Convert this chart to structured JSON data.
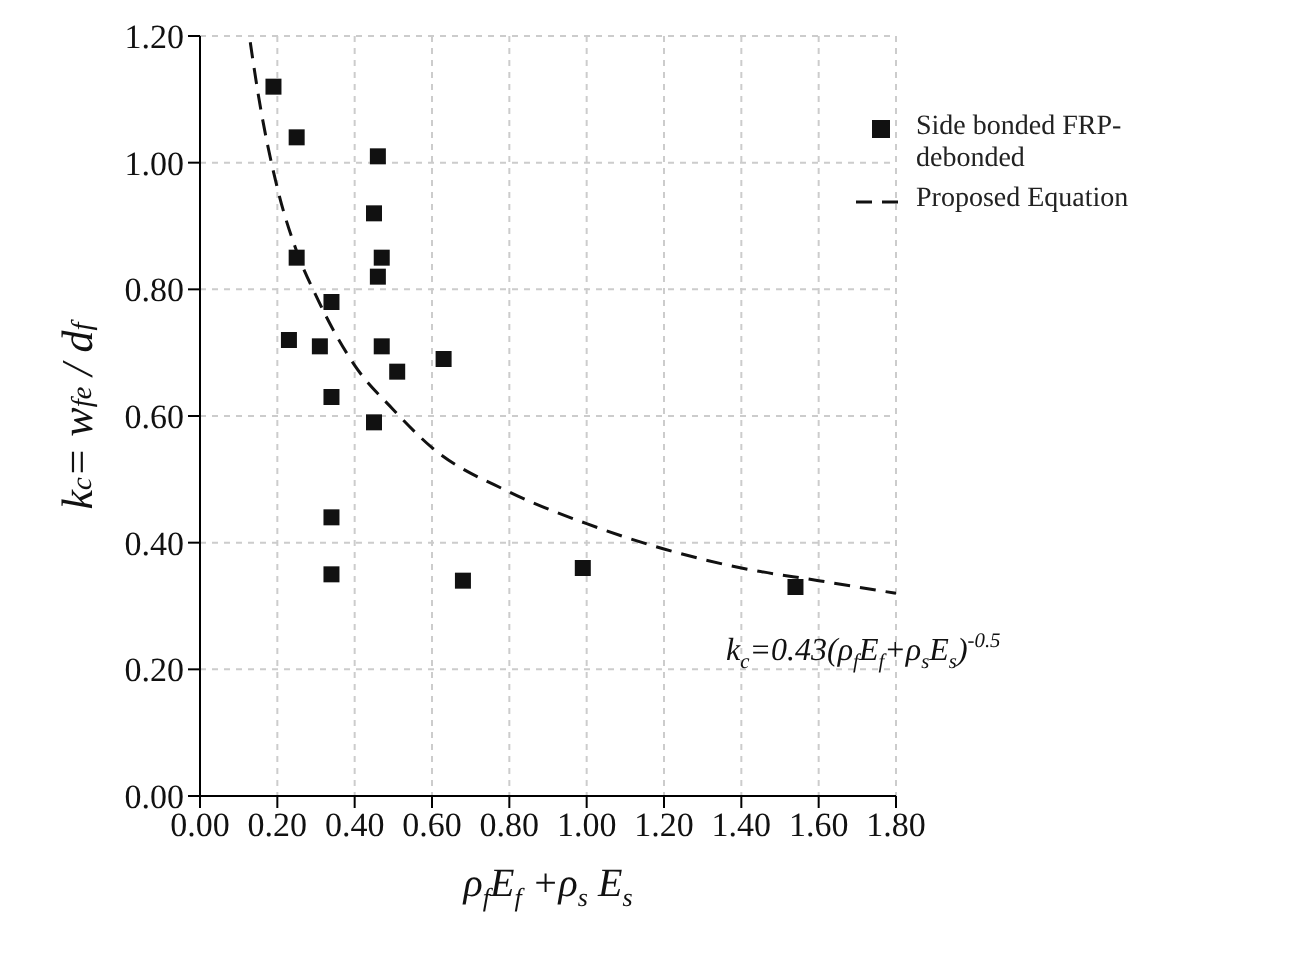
{
  "chart_data": {
    "type": "scatter",
    "xlabel": "ρ$_{f}$E$_{f}$ +ρ$_{s}$ E$_{s}$",
    "ylabel": "k$_{c}$= w$_{fe}$ / d$_{f}$",
    "xlim": [
      0,
      1.8
    ],
    "xticks": [
      {
        "value": 0,
        "label": "0.00"
      },
      {
        "value": 0.2,
        "label": "0.20"
      },
      {
        "value": 0.4,
        "label": "0.40"
      },
      {
        "value": 0.6,
        "label": "0.60"
      },
      {
        "value": 0.8,
        "label": "0.80"
      },
      {
        "value": 1,
        "label": "1.00"
      },
      {
        "value": 1.2,
        "label": "1.20"
      },
      {
        "value": 1.4,
        "label": "1.40"
      },
      {
        "value": 1.6,
        "label": "1.60"
      },
      {
        "value": 1.8,
        "label": "1.80"
      }
    ],
    "ylim": [
      0,
      1.2
    ],
    "yticks": [
      {
        "value": 0,
        "label": "0.00"
      },
      {
        "value": 0.2,
        "label": "0.20"
      },
      {
        "value": 0.4,
        "label": "0.40"
      },
      {
        "value": 0.6,
        "label": "0.60"
      },
      {
        "value": 0.8,
        "label": "0.80"
      },
      {
        "value": 1,
        "label": "1.00"
      },
      {
        "value": 1.2,
        "label": "1.20"
      }
    ],
    "grid": true,
    "legend": "top right",
    "marker": "square",
    "annotations": [
      "k$_{c}$=0.43(ρ$_{f}$E$_{f}$+ρ$_{s}$E$_{s}$)$^{-0.5}$"
    ],
    "series": [
      {
        "name": "Side bonded FRP-debonded",
        "color": "#111111",
        "x": [
          0.19,
          0.25,
          0.46,
          0.45,
          0.47,
          0.46,
          0.25,
          0.34,
          0.23,
          0.31,
          0.47,
          0.51,
          0.63,
          0.34,
          0.45,
          0.34,
          0.34,
          0.68,
          0.99,
          1.54
        ],
        "values": [
          1.12,
          1.04,
          1.01,
          0.92,
          0.85,
          0.82,
          0.85,
          0.78,
          0.72,
          0.71,
          0.71,
          0.67,
          0.69,
          0.63,
          0.59,
          0.44,
          0.35,
          0.34,
          0.36,
          0.33
        ]
      },
      {
        "name": "Proposed Equation",
        "type": "line",
        "color": "#111111",
        "line_style": "dashed",
        "marker": "none",
        "x": [
          0.13,
          0.15,
          0.2,
          0.25,
          0.3,
          0.4,
          0.5,
          0.6,
          0.8,
          1.0,
          1.2,
          1.4,
          1.6,
          1.8
        ],
        "values": [
          1.19,
          1.11,
          0.96,
          0.86,
          0.79,
          0.68,
          0.61,
          0.55,
          0.48,
          0.43,
          0.39,
          0.36,
          0.34,
          0.32
        ]
      }
    ]
  }
}
